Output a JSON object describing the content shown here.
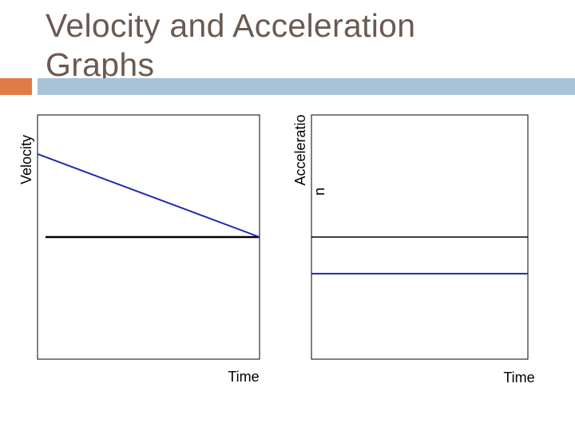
{
  "title": "Velocity and Acceleration Graphs",
  "colors": {
    "title": "#6b5a50",
    "accent_orange": "#e07b45",
    "accent_blue": "#a8c2d8",
    "series": "#1f2aa8",
    "axis": "#000000"
  },
  "chart_data": [
    {
      "type": "line",
      "ylabel": "Velocity",
      "xlabel": "Time",
      "xlim": [
        0,
        1
      ],
      "ylim": [
        -1,
        1
      ],
      "series": [
        {
          "name": "velocity",
          "x": [
            0,
            1
          ],
          "y": [
            0.68,
            0
          ]
        }
      ]
    },
    {
      "type": "line",
      "ylabel_lines": [
        "Acceleratio",
        "n"
      ],
      "xlabel": "Time",
      "xlim": [
        0,
        1
      ],
      "ylim": [
        -1,
        1
      ],
      "series": [
        {
          "name": "acceleration",
          "x": [
            0,
            1
          ],
          "y": [
            -0.3,
            -0.3
          ]
        }
      ]
    }
  ]
}
